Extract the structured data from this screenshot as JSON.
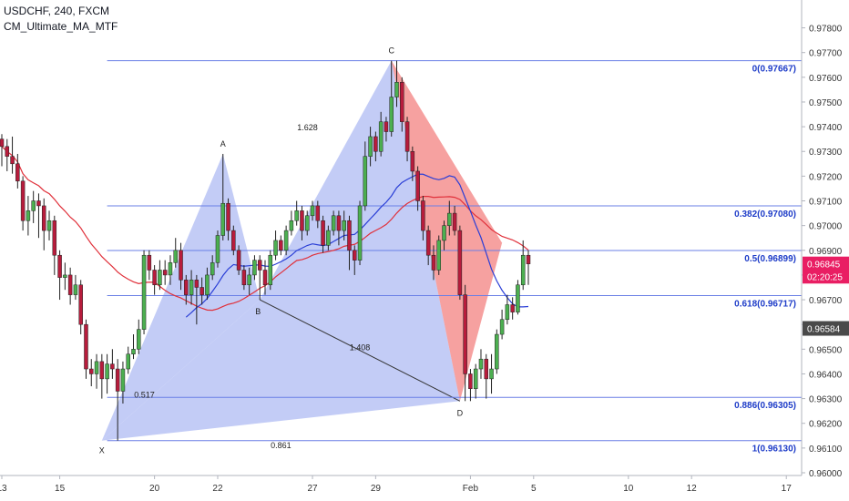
{
  "header": {
    "symbol_line": "USDCHF, 240, FXCM",
    "indicator_line": "CM_Ultimate_MA_MTF"
  },
  "chart_data": {
    "type": "candlestick",
    "symbol": "USDCHF",
    "timeframe": "240",
    "source": "FXCM",
    "indicator": "CM_Ultimate_MA_MTF",
    "ylim": [
      0.96,
      0.9785
    ],
    "y_ticks": [
      "0.97800",
      "0.97700",
      "0.97600",
      "0.97500",
      "0.97400",
      "0.97300",
      "0.97200",
      "0.97100",
      "0.97000",
      "0.96900",
      "0.96800",
      "0.96700",
      "0.96600",
      "0.96500",
      "0.96400",
      "0.96300",
      "0.96200",
      "0.96100",
      "0.96000"
    ],
    "x_ticks": [
      {
        "label": "13",
        "i": 0
      },
      {
        "label": "15",
        "i": 11
      },
      {
        "label": "20",
        "i": 29
      },
      {
        "label": "22",
        "i": 41
      },
      {
        "label": "27",
        "i": 59
      },
      {
        "label": "29",
        "i": 71
      },
      {
        "label": "Feb",
        "i": 89
      },
      {
        "label": "5",
        "i": 101
      },
      {
        "label": "10",
        "i": 119
      },
      {
        "label": "12",
        "i": 131
      },
      {
        "label": "17",
        "i": 149
      }
    ],
    "harmonic_pattern": {
      "points": [
        {
          "label": "X",
          "i": 19,
          "price": 0.9613
        },
        {
          "label": "A",
          "i": 42,
          "price": 0.9729
        },
        {
          "label": "B",
          "i": 49,
          "price": 0.967
        },
        {
          "label": "C",
          "i": 74,
          "price": 0.97667
        },
        {
          "label": "D",
          "i": 87,
          "price": 0.9629
        }
      ],
      "ratios": [
        {
          "label": "0.517",
          "between": "XB"
        },
        {
          "label": "1.628",
          "between": "BC"
        },
        {
          "label": "1.408",
          "between": "BD"
        },
        {
          "label": "0.861",
          "between": "XD"
        }
      ]
    },
    "fib_levels": [
      {
        "label": "0(0.97667)",
        "price": 0.97667
      },
      {
        "label": "0.382(0.97080)",
        "price": 0.9708
      },
      {
        "label": "0.5(0.96899)",
        "price": 0.96899
      },
      {
        "label": "0.618(0.96717)",
        "price": 0.96717
      },
      {
        "label": "0.886(0.96305)",
        "price": 0.96305
      },
      {
        "label": "1(0.96130)",
        "price": 0.9613
      }
    ],
    "price_tags": [
      {
        "text": "0.96845",
        "price": 0.96845,
        "color": "#e91e63",
        "text_color": "#ffffff"
      },
      {
        "text": "02:20:25",
        "price": 0.96795,
        "color": "#e91e63",
        "text_color": "#ffffff"
      },
      {
        "text": "0.96584",
        "price": 0.96584,
        "color": "#4a4a4a",
        "text_color": "#ffffff"
      }
    ],
    "colors": {
      "up": "#4caf50",
      "down": "#b71c3c",
      "fib_line": "#6a7fe6",
      "fib_label": "#1e3cc8",
      "pattern_blue": "#b9c3f5",
      "pattern_red": "#f5908f",
      "ma_red": "#e0303a",
      "ma_blue": "#2a3ed6"
    },
    "candles": [
      [
        0.9735,
        0.9732,
        0.9737,
        0.9724
      ],
      [
        0.9732,
        0.9728,
        0.9735,
        0.9722
      ],
      [
        0.9728,
        0.9725,
        0.9736,
        0.9721
      ],
      [
        0.9725,
        0.9718,
        0.9729,
        0.9715
      ],
      [
        0.9718,
        0.9702,
        0.972,
        0.9698
      ],
      [
        0.9702,
        0.9706,
        0.9712,
        0.9696
      ],
      [
        0.9706,
        0.971,
        0.9714,
        0.9701
      ],
      [
        0.971,
        0.9708,
        0.9713,
        0.9695
      ],
      [
        0.9708,
        0.9698,
        0.9711,
        0.969
      ],
      [
        0.9698,
        0.9702,
        0.9706,
        0.9694
      ],
      [
        0.9702,
        0.9688,
        0.9704,
        0.968
      ],
      [
        0.9688,
        0.9679,
        0.969,
        0.967
      ],
      [
        0.9679,
        0.968,
        0.9685,
        0.9674
      ],
      [
        0.968,
        0.9672,
        0.9683,
        0.9668
      ],
      [
        0.9672,
        0.9676,
        0.968,
        0.967
      ],
      [
        0.9676,
        0.966,
        0.9678,
        0.9656
      ],
      [
        0.966,
        0.9642,
        0.9662,
        0.9638
      ],
      [
        0.9642,
        0.964,
        0.9646,
        0.9635
      ],
      [
        0.964,
        0.9645,
        0.9648,
        0.9634
      ],
      [
        0.9645,
        0.9638,
        0.9648,
        0.963
      ],
      [
        0.9638,
        0.9644,
        0.9648,
        0.9632
      ],
      [
        0.9644,
        0.9642,
        0.965,
        0.9638
      ],
      [
        0.9642,
        0.9633,
        0.9646,
        0.9613
      ],
      [
        0.9633,
        0.9642,
        0.9645,
        0.9628
      ],
      [
        0.9642,
        0.9648,
        0.9651,
        0.964
      ],
      [
        0.9648,
        0.965,
        0.9656,
        0.9646
      ],
      [
        0.965,
        0.9658,
        0.9662,
        0.9648
      ],
      [
        0.9658,
        0.9688,
        0.969,
        0.9656
      ],
      [
        0.9688,
        0.9682,
        0.969,
        0.9678
      ],
      [
        0.9682,
        0.9676,
        0.9684,
        0.9672
      ],
      [
        0.9676,
        0.9682,
        0.9686,
        0.9674
      ],
      [
        0.9682,
        0.968,
        0.9686,
        0.9676
      ],
      [
        0.968,
        0.9685,
        0.9688,
        0.9676
      ],
      [
        0.9685,
        0.969,
        0.9695,
        0.9683
      ],
      [
        0.969,
        0.9678,
        0.9693,
        0.9674
      ],
      [
        0.9678,
        0.9672,
        0.968,
        0.9668
      ],
      [
        0.9672,
        0.9678,
        0.9682,
        0.9668
      ],
      [
        0.9678,
        0.9675,
        0.968,
        0.966
      ],
      [
        0.9675,
        0.9672,
        0.9679,
        0.9668
      ],
      [
        0.9672,
        0.968,
        0.9683,
        0.967
      ],
      [
        0.968,
        0.9685,
        0.9688,
        0.9678
      ],
      [
        0.9685,
        0.9696,
        0.9698,
        0.9683
      ],
      [
        0.9696,
        0.9709,
        0.9729,
        0.9694
      ],
      [
        0.9709,
        0.9698,
        0.9711,
        0.9694
      ],
      [
        0.9698,
        0.969,
        0.97,
        0.9688
      ],
      [
        0.969,
        0.9682,
        0.9692,
        0.968
      ],
      [
        0.9682,
        0.9676,
        0.9684,
        0.9674
      ],
      [
        0.9676,
        0.968,
        0.9683,
        0.9672
      ],
      [
        0.968,
        0.9686,
        0.9688,
        0.9678
      ],
      [
        0.9686,
        0.9682,
        0.9688,
        0.967
      ],
      [
        0.9682,
        0.9676,
        0.9686,
        0.9672
      ],
      [
        0.9676,
        0.9688,
        0.969,
        0.9674
      ],
      [
        0.9688,
        0.9694,
        0.9698,
        0.9686
      ],
      [
        0.9694,
        0.969,
        0.9696,
        0.9688
      ],
      [
        0.969,
        0.9698,
        0.97,
        0.9688
      ],
      [
        0.9698,
        0.9702,
        0.9706,
        0.9696
      ],
      [
        0.9702,
        0.9706,
        0.971,
        0.97
      ],
      [
        0.9706,
        0.9698,
        0.9708,
        0.9694
      ],
      [
        0.9698,
        0.9704,
        0.9706,
        0.9696
      ],
      [
        0.9704,
        0.9708,
        0.971,
        0.9702
      ],
      [
        0.9708,
        0.9702,
        0.971,
        0.9699
      ],
      [
        0.9702,
        0.9692,
        0.9704,
        0.9689
      ],
      [
        0.9692,
        0.9698,
        0.97,
        0.969
      ],
      [
        0.9698,
        0.9704,
        0.9706,
        0.9696
      ],
      [
        0.9704,
        0.9698,
        0.9706,
        0.9692
      ],
      [
        0.9698,
        0.9702,
        0.9706,
        0.9694
      ],
      [
        0.9702,
        0.969,
        0.9704,
        0.9682
      ],
      [
        0.969,
        0.9686,
        0.9692,
        0.968
      ],
      [
        0.9686,
        0.9708,
        0.971,
        0.9684
      ],
      [
        0.9708,
        0.9728,
        0.9734,
        0.9706
      ],
      [
        0.9728,
        0.9736,
        0.974,
        0.9724
      ],
      [
        0.9736,
        0.973,
        0.9738,
        0.9726
      ],
      [
        0.973,
        0.9742,
        0.9746,
        0.9728
      ],
      [
        0.9742,
        0.9738,
        0.9744,
        0.9734
      ],
      [
        0.9738,
        0.9752,
        0.97667,
        0.9736
      ],
      [
        0.9752,
        0.9758,
        0.97667,
        0.9748
      ],
      [
        0.9758,
        0.9742,
        0.976,
        0.9738
      ],
      [
        0.9742,
        0.973,
        0.9744,
        0.9726
      ],
      [
        0.973,
        0.9722,
        0.9732,
        0.9718
      ],
      [
        0.9722,
        0.971,
        0.9724,
        0.9706
      ],
      [
        0.971,
        0.9698,
        0.9712,
        0.9694
      ],
      [
        0.9698,
        0.9688,
        0.97,
        0.9684
      ],
      [
        0.9688,
        0.9682,
        0.9692,
        0.9678
      ],
      [
        0.9682,
        0.9694,
        0.9696,
        0.968
      ],
      [
        0.9694,
        0.97,
        0.9702,
        0.969
      ],
      [
        0.97,
        0.9705,
        0.971,
        0.9696
      ],
      [
        0.9705,
        0.9698,
        0.9708,
        0.9696
      ],
      [
        0.9698,
        0.9672,
        0.97,
        0.967
      ],
      [
        0.9672,
        0.964,
        0.9676,
        0.9629
      ],
      [
        0.964,
        0.9634,
        0.9642,
        0.9629
      ],
      [
        0.9634,
        0.9642,
        0.9644,
        0.963
      ],
      [
        0.9642,
        0.9646,
        0.965,
        0.9638
      ],
      [
        0.9646,
        0.9638,
        0.9648,
        0.963
      ],
      [
        0.9638,
        0.9642,
        0.9648,
        0.9632
      ],
      [
        0.9642,
        0.9656,
        0.9658,
        0.964
      ],
      [
        0.9656,
        0.9662,
        0.9666,
        0.9654
      ],
      [
        0.9662,
        0.9668,
        0.9672,
        0.966
      ],
      [
        0.9668,
        0.9665,
        0.9671,
        0.9662
      ],
      [
        0.9665,
        0.9676,
        0.9678,
        0.9664
      ],
      [
        0.9676,
        0.9688,
        0.9694,
        0.9674
      ],
      [
        0.9688,
        0.96845,
        0.969,
        0.9676
      ]
    ]
  }
}
